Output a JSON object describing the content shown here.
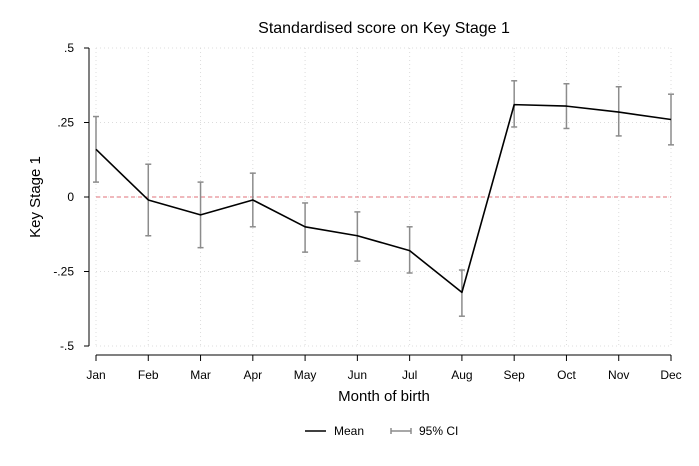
{
  "chart_data": {
    "type": "line",
    "title": "Standardised score on Key Stage 1",
    "xlabel": "Month of birth",
    "ylabel": "Key Stage 1",
    "categories": [
      "Jan",
      "Feb",
      "Mar",
      "Apr",
      "May",
      "Jun",
      "Jul",
      "Aug",
      "Sep",
      "Oct",
      "Nov",
      "Dec"
    ],
    "ylim": [
      -0.5,
      0.5
    ],
    "yticks": [
      {
        "value": -0.5,
        "label": "-.5"
      },
      {
        "value": -0.25,
        "label": "-.25"
      },
      {
        "value": 0,
        "label": "0"
      },
      {
        "value": 0.25,
        "label": ".25"
      },
      {
        "value": 0.5,
        "label": ".5"
      }
    ],
    "grid": true,
    "reference_line": {
      "y": 0,
      "color": "#e0707a",
      "style": "dashed"
    },
    "series": [
      {
        "name": "Mean",
        "color": "#000000",
        "values": [
          0.16,
          -0.01,
          -0.06,
          -0.01,
          -0.1,
          -0.13,
          -0.18,
          -0.32,
          0.31,
          0.305,
          0.285,
          0.26
        ]
      },
      {
        "name": "95% CI",
        "type": "error_bar",
        "color": "#8c8c8c",
        "lower": [
          0.05,
          -0.13,
          -0.17,
          -0.1,
          -0.185,
          -0.215,
          -0.255,
          -0.4,
          0.235,
          0.23,
          0.205,
          0.175
        ],
        "upper": [
          0.27,
          0.11,
          0.05,
          0.08,
          -0.02,
          -0.05,
          -0.1,
          -0.245,
          0.39,
          0.38,
          0.37,
          0.345
        ]
      }
    ],
    "legend": {
      "position": "bottom-center",
      "entries": [
        {
          "label": "Mean",
          "color": "#000000",
          "symbol": "line"
        },
        {
          "label": "95% CI",
          "color": "#8c8c8c",
          "symbol": "errorbar"
        }
      ]
    }
  }
}
